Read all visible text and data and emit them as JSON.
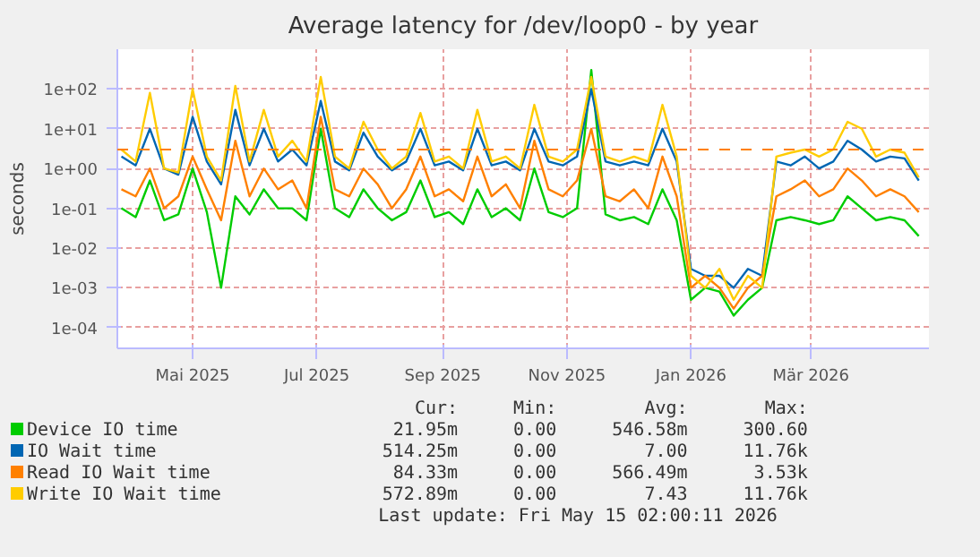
{
  "chart_data": {
    "type": "line",
    "title": "Average latency for /dev/loop0 - by year",
    "ylabel": "seconds",
    "log": "y",
    "grid": true,
    "legend": "bottom",
    "x": [
      "2025-03-27",
      "2025-04-03",
      "2025-04-10",
      "2025-04-17",
      "2025-04-24",
      "2025-05-01",
      "2025-05-08",
      "2025-05-15",
      "2025-05-22",
      "2025-05-29",
      "2025-06-05",
      "2025-06-12",
      "2025-06-19",
      "2025-06-26",
      "2025-07-03",
      "2025-07-10",
      "2025-07-17",
      "2025-07-24",
      "2025-07-31",
      "2025-08-07",
      "2025-08-14",
      "2025-08-21",
      "2025-08-28",
      "2025-09-04",
      "2025-09-11",
      "2025-09-18",
      "2025-09-25",
      "2025-10-02",
      "2025-10-09",
      "2025-10-16",
      "2025-10-23",
      "2025-10-30",
      "2025-11-06",
      "2025-11-13",
      "2025-11-20",
      "2025-11-27",
      "2025-12-04",
      "2025-12-11",
      "2025-12-18",
      "2025-12-25",
      "2026-01-01",
      "2026-01-08",
      "2026-01-15",
      "2026-01-22",
      "2026-01-29",
      "2026-02-05",
      "2026-02-12",
      "2026-02-19",
      "2026-02-26",
      "2026-03-05",
      "2026-03-12",
      "2026-03-19",
      "2026-03-26",
      "2026-04-02",
      "2026-04-09",
      "2026-04-16",
      "2026-04-23"
    ],
    "xlim": [
      "2025-03-25",
      "2026-04-28"
    ],
    "xticks": [
      {
        "value": "2025-05-01",
        "label": "Mai 2025"
      },
      {
        "value": "2025-07-01",
        "label": "Jul 2025"
      },
      {
        "value": "2025-09-01",
        "label": "Sep 2025"
      },
      {
        "value": "2025-11-01",
        "label": "Nov 2025"
      },
      {
        "value": "2026-01-01",
        "label": "Jan 2026"
      },
      {
        "value": "2026-03-01",
        "label": "Mär 2026"
      }
    ],
    "ylim": [
      3e-05,
      1000
    ],
    "yticks": [
      {
        "value": 0.0001,
        "label": "1e-04"
      },
      {
        "value": 0.001,
        "label": "1e-03"
      },
      {
        "value": 0.01,
        "label": "1e-02"
      },
      {
        "value": 0.1,
        "label": "1e-01"
      },
      {
        "value": 1,
        "label": "1e+00"
      },
      {
        "value": 10,
        "label": "1e+01"
      },
      {
        "value": 100,
        "label": "1e+02"
      }
    ],
    "series": [
      {
        "name": "Device IO time",
        "color": "#00cc00",
        "values": [
          0.1,
          0.06,
          0.5,
          0.05,
          0.07,
          1,
          0.08,
          0.001,
          0.2,
          0.07,
          0.3,
          0.1,
          0.1,
          0.05,
          10,
          0.1,
          0.06,
          0.3,
          0.1,
          0.05,
          0.08,
          0.5,
          0.06,
          0.08,
          0.04,
          0.3,
          0.06,
          0.1,
          0.05,
          1,
          0.08,
          0.06,
          0.1,
          300,
          0.07,
          0.05,
          0.06,
          0.04,
          0.3,
          0.05,
          0.0005,
          0.001,
          0.0008,
          0.0002,
          0.0005,
          0.001,
          0.05,
          0.06,
          0.05,
          0.04,
          0.05,
          0.2,
          0.1,
          0.05,
          0.06,
          0.05,
          0.02
        ]
      },
      {
        "name": "IO Wait time",
        "color": "#0066b3",
        "values": [
          2,
          1.2,
          10,
          1,
          0.7,
          20,
          1.5,
          0.4,
          30,
          1.2,
          10,
          1.5,
          3,
          1.2,
          50,
          1.5,
          0.9,
          8,
          2,
          0.9,
          1.5,
          10,
          1.2,
          1.5,
          0.9,
          10,
          1.2,
          1.5,
          0.9,
          10,
          1.5,
          1.2,
          2,
          100,
          1.5,
          1.2,
          1.5,
          1.2,
          10,
          1.5,
          0.003,
          0.002,
          0.002,
          0.001,
          0.003,
          0.002,
          1.5,
          1.2,
          2,
          1,
          1.5,
          5,
          3,
          1.5,
          2,
          1.8,
          0.5
        ]
      },
      {
        "name": "Read IO Wait time",
        "color": "#ff8000",
        "values": [
          0.3,
          0.2,
          1,
          0.1,
          0.2,
          2,
          0.3,
          0.05,
          5,
          0.2,
          1,
          0.3,
          0.5,
          0.1,
          20,
          0.3,
          0.2,
          1,
          0.4,
          0.1,
          0.3,
          2,
          0.2,
          0.3,
          0.15,
          2,
          0.2,
          0.4,
          0.1,
          5,
          0.3,
          0.2,
          0.5,
          10,
          0.2,
          0.15,
          0.3,
          0.1,
          2,
          0.2,
          0.001,
          0.002,
          0.001,
          0.0003,
          0.001,
          0.002,
          0.2,
          0.3,
          0.5,
          0.2,
          0.3,
          1,
          0.5,
          0.2,
          0.3,
          0.2,
          0.08
        ]
      },
      {
        "name": "Write IO Wait time",
        "color": "#ffcc00",
        "values": [
          3,
          1.5,
          80,
          1,
          0.8,
          100,
          2,
          0.5,
          120,
          1.5,
          30,
          2,
          5,
          1.5,
          200,
          2,
          1,
          15,
          3,
          1,
          2,
          25,
          1.5,
          2,
          1,
          30,
          1.5,
          2,
          1,
          40,
          2,
          1.5,
          3,
          200,
          2,
          1.5,
          2,
          1.5,
          40,
          2,
          0.002,
          0.001,
          0.003,
          0.0005,
          0.002,
          0.001,
          2,
          2.5,
          3,
          2,
          3,
          15,
          10,
          2,
          3,
          2.5,
          0.6
        ]
      }
    ],
    "ref_lines": [
      {
        "axis": "y",
        "value": 3,
        "color": "#ff8000",
        "line_style": "dashed"
      }
    ],
    "annotations": [
      "Cur:",
      "Min:",
      "Avg:",
      "Max:",
      "21.95m",
      "0.00",
      "546.58m",
      "300.60",
      "514.25m",
      "0.00",
      "7.00",
      "11.76k",
      "84.33m",
      "0.00",
      "566.49m",
      "3.53k",
      "572.89m",
      "0.00",
      "7.43",
      "11.76k",
      "Last update: Fri May 15 02:00:11 2026"
    ]
  }
}
